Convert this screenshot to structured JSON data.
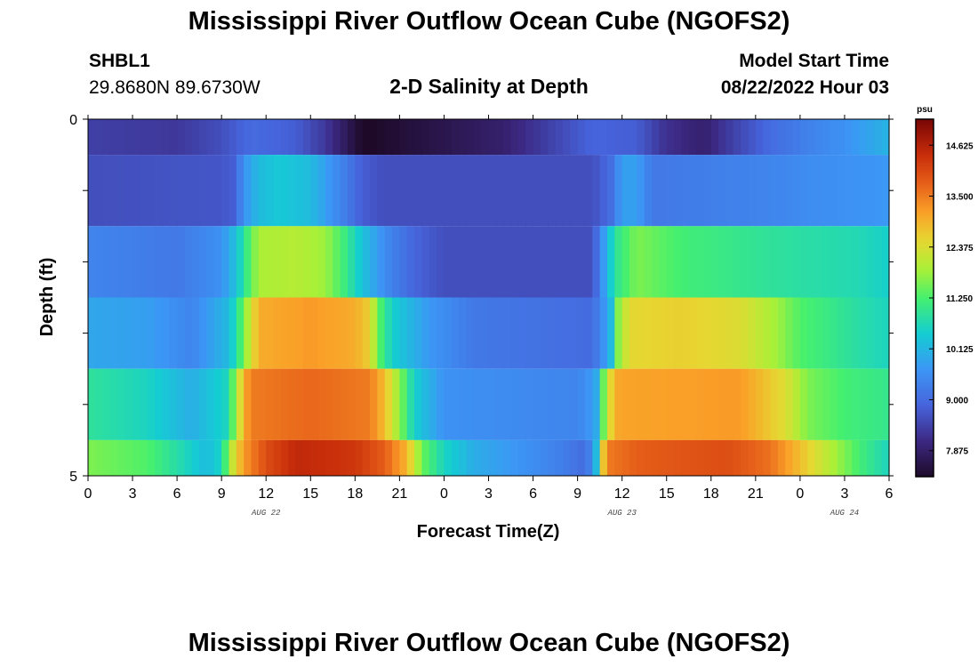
{
  "header": {
    "title": "Mississippi River Outflow Ocean Cube (NGOFS2)",
    "station": "SHBL1",
    "coordinates": "29.8680N  89.6730W",
    "subtitle": "2-D Salinity at Depth",
    "model_start_label": "Model Start Time",
    "model_start_value": "08/22/2022 Hour 03"
  },
  "footer": {
    "title": "Mississippi River Outflow Ocean Cube (NGOFS2)"
  },
  "chart_data": {
    "type": "heatmap",
    "xlabel": "Forecast Time(Z)",
    "ylabel": "Depth (ft)",
    "x_tick_labels": [
      "0",
      "3",
      "6",
      "9",
      "12",
      "15",
      "18",
      "21",
      "0",
      "3",
      "6",
      "9",
      "12",
      "15",
      "18",
      "21",
      "0",
      "3",
      "6"
    ],
    "date_labels": [
      {
        "text": "AUG 22",
        "hour": 12
      },
      {
        "text": "AUG 23",
        "hour": 36
      },
      {
        "text": "AUG 24",
        "hour": 51
      }
    ],
    "y_tick_labels": [
      "0",
      "5"
    ],
    "xlim_hours": [
      0,
      54
    ],
    "ylim_ft": [
      0,
      5
    ],
    "y_inverted": true,
    "depth_levels": [
      "0-0.5",
      "0.5-1.5",
      "1.5-2.5",
      "2.5-3.5",
      "3.5-4.5",
      "4.5-5"
    ],
    "colorbar": {
      "unit": "psu",
      "min": 7.3,
      "max": 15.2,
      "tick_values": [
        7.875,
        9.0,
        10.125,
        11.25,
        12.375,
        13.5,
        14.625
      ],
      "tick_labels": [
        "7.875",
        "9.000",
        "10.125",
        "11.250",
        "12.375",
        "13.500",
        "14.625"
      ]
    },
    "series": [
      {
        "depth": "0-0.5",
        "knots": [
          [
            0,
            8.4
          ],
          [
            6,
            8.3
          ],
          [
            9,
            8.6
          ],
          [
            11,
            9.0
          ],
          [
            14,
            8.8
          ],
          [
            16,
            8.3
          ],
          [
            17,
            7.9
          ],
          [
            18.5,
            7.3
          ],
          [
            19.2,
            7.3
          ],
          [
            22,
            7.5
          ],
          [
            25,
            7.7
          ],
          [
            28,
            7.9
          ],
          [
            31,
            8.4
          ],
          [
            34,
            8.9
          ],
          [
            37,
            8.8
          ],
          [
            39,
            8.2
          ],
          [
            41.5,
            7.9
          ],
          [
            43,
            8.3
          ],
          [
            46,
            9.0
          ],
          [
            49,
            9.4
          ],
          [
            51,
            9.6
          ],
          [
            54,
            10.1
          ]
        ]
      },
      {
        "depth": "0.5-1.5",
        "knots": [
          [
            0,
            8.6
          ],
          [
            9,
            8.7
          ],
          [
            9.8,
            8.8
          ],
          [
            10.5,
            9.6
          ],
          [
            11.5,
            10.2
          ],
          [
            13,
            10.4
          ],
          [
            15,
            10.2
          ],
          [
            17,
            9.4
          ],
          [
            18.5,
            8.8
          ],
          [
            20,
            8.6
          ],
          [
            34,
            8.6
          ],
          [
            35.2,
            9.0
          ],
          [
            36,
            9.8
          ],
          [
            37,
            9.8
          ],
          [
            38,
            9.2
          ],
          [
            42,
            9.3
          ],
          [
            46,
            9.4
          ],
          [
            48,
            9.5
          ],
          [
            51,
            9.6
          ],
          [
            54,
            9.7
          ]
        ]
      },
      {
        "depth": "1.5-2.5",
        "knots": [
          [
            0,
            9.4
          ],
          [
            6,
            9.2
          ],
          [
            9,
            9.6
          ],
          [
            10,
            10.3
          ],
          [
            10.6,
            11.0
          ],
          [
            11.5,
            11.9
          ],
          [
            14,
            12.0
          ],
          [
            16,
            11.8
          ],
          [
            17.5,
            11.0
          ],
          [
            18.5,
            10.3
          ],
          [
            20,
            9.5
          ],
          [
            22,
            8.9
          ],
          [
            24,
            8.6
          ],
          [
            34,
            8.6
          ],
          [
            34.8,
            9.8
          ],
          [
            35.5,
            10.9
          ],
          [
            37,
            11.6
          ],
          [
            40,
            11.2
          ],
          [
            46,
            10.9
          ],
          [
            52,
            10.7
          ],
          [
            54,
            10.5
          ]
        ]
      },
      {
        "depth": "2.5-3.5",
        "knots": [
          [
            0,
            9.9
          ],
          [
            4,
            9.8
          ],
          [
            7,
            9.4
          ],
          [
            9.5,
            10.2
          ],
          [
            10,
            10.8
          ],
          [
            10.8,
            12.0
          ],
          [
            11.5,
            13.0
          ],
          [
            15,
            13.2
          ],
          [
            18,
            13.0
          ],
          [
            19,
            12.6
          ],
          [
            19.5,
            11.5
          ],
          [
            20.5,
            10.5
          ],
          [
            23,
            9.7
          ],
          [
            26,
            9.2
          ],
          [
            34,
            9.0
          ],
          [
            35.2,
            10.0
          ],
          [
            35.6,
            11.5
          ],
          [
            36.5,
            12.5
          ],
          [
            40,
            12.6
          ],
          [
            44,
            12.4
          ],
          [
            46.5,
            11.8
          ],
          [
            48,
            11.3
          ],
          [
            52,
            10.8
          ],
          [
            54,
            10.6
          ]
        ]
      },
      {
        "depth": "3.5-4.5",
        "knots": [
          [
            0,
            10.9
          ],
          [
            4,
            10.6
          ],
          [
            7,
            10.0
          ],
          [
            9.3,
            10.6
          ],
          [
            10,
            11.8
          ],
          [
            10.5,
            13.0
          ],
          [
            11,
            13.5
          ],
          [
            15,
            13.7
          ],
          [
            19,
            13.5
          ],
          [
            20,
            12.8
          ],
          [
            21,
            11.7
          ],
          [
            22,
            10.5
          ],
          [
            24,
            9.6
          ],
          [
            33,
            9.4
          ],
          [
            34.2,
            9.8
          ],
          [
            34.6,
            11.0
          ],
          [
            35,
            12.3
          ],
          [
            35.8,
            13.1
          ],
          [
            44,
            13.2
          ],
          [
            47,
            12.4
          ],
          [
            48.5,
            11.6
          ],
          [
            51,
            11.2
          ],
          [
            54,
            11.0
          ]
        ]
      },
      {
        "depth": "4.5-5",
        "knots": [
          [
            0,
            11.6
          ],
          [
            4,
            11.3
          ],
          [
            6,
            10.8
          ],
          [
            8,
            10.2
          ],
          [
            9,
            10.6
          ],
          [
            9.6,
            12.0
          ],
          [
            10.5,
            13.2
          ],
          [
            12,
            14.0
          ],
          [
            14,
            14.5
          ],
          [
            18,
            14.3
          ],
          [
            20,
            13.8
          ],
          [
            21.5,
            12.9
          ],
          [
            22.5,
            11.5
          ],
          [
            24,
            10.6
          ],
          [
            26,
            10.0
          ],
          [
            32,
            9.3
          ],
          [
            33.5,
            9.0
          ],
          [
            34.2,
            9.8
          ],
          [
            34.5,
            12.0
          ],
          [
            35,
            13.5
          ],
          [
            37,
            13.8
          ],
          [
            43,
            14.0
          ],
          [
            46,
            13.6
          ],
          [
            48,
            12.8
          ],
          [
            50,
            12.0
          ],
          [
            52,
            11.2
          ],
          [
            54,
            10.6
          ]
        ]
      }
    ]
  }
}
